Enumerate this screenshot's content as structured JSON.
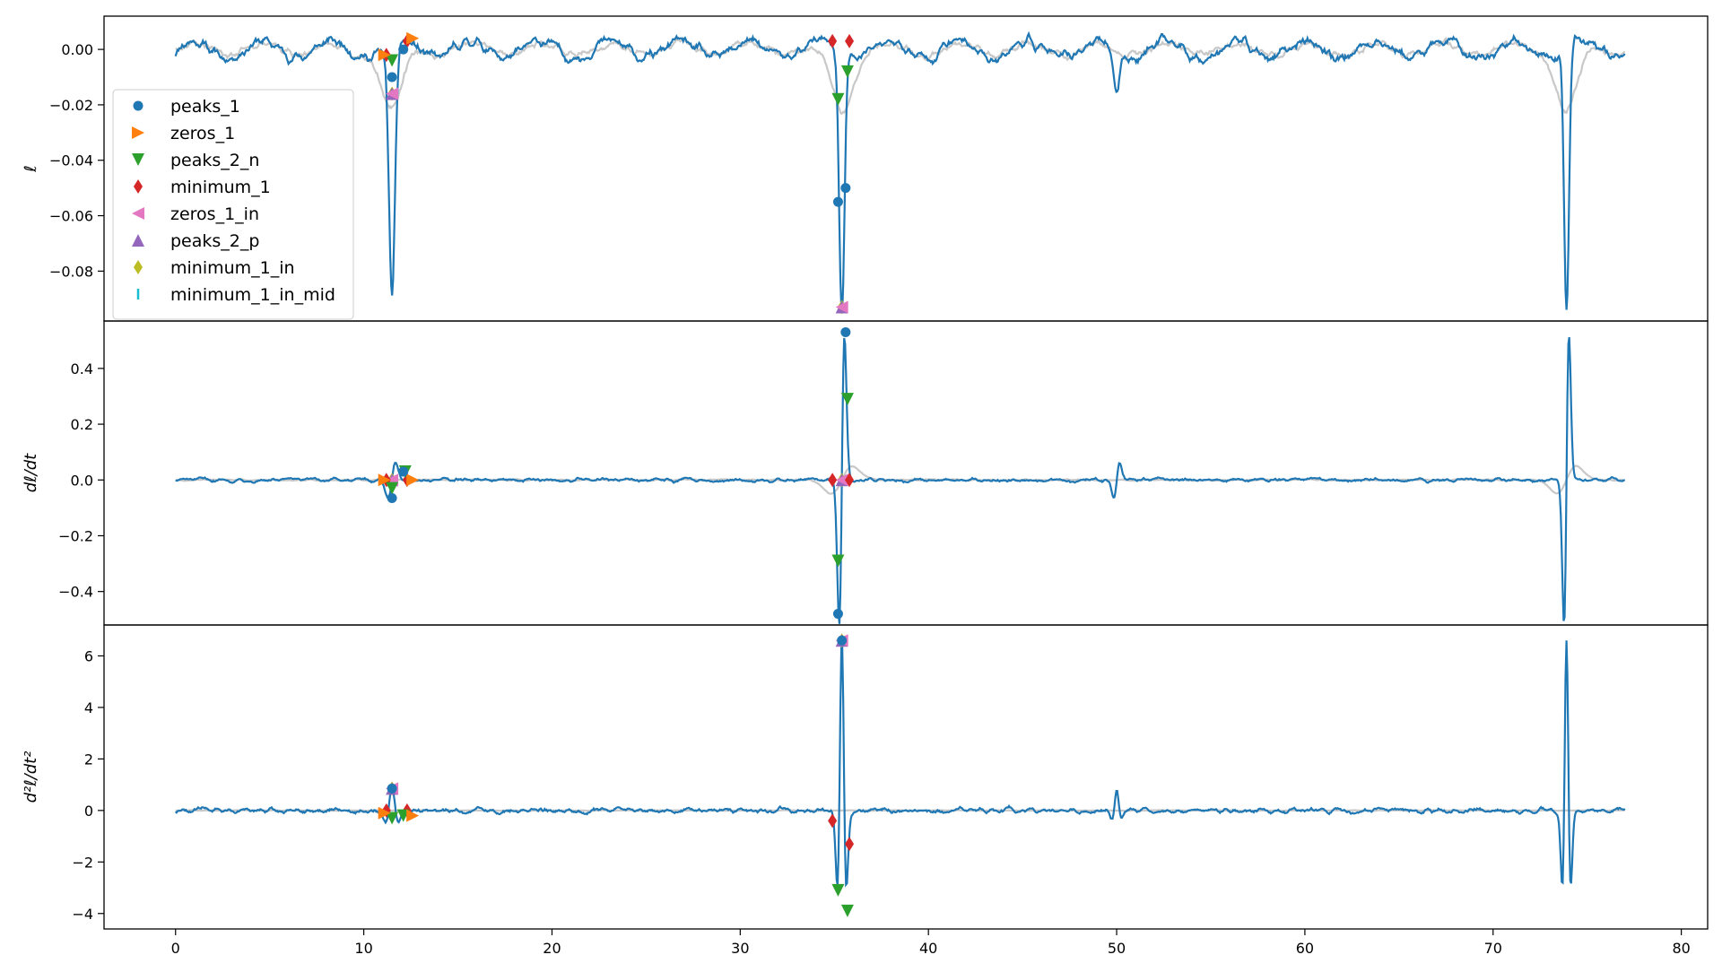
{
  "chart_data": [
    {
      "type": "line",
      "ylabel": "ℓ",
      "ylim": [
        -0.098,
        0.012
      ],
      "yticks": [
        0.0,
        -0.02,
        -0.04,
        -0.06,
        -0.08
      ],
      "ytick_labels": [
        "0.00",
        "−0.02",
        "−0.04",
        "−0.06",
        "−0.08"
      ],
      "events": [
        {
          "x": 11.5,
          "depth": -0.092,
          "width": 0.16
        },
        {
          "x": 35.4,
          "depth": -0.094,
          "width": 0.14
        },
        {
          "x": 73.9,
          "depth": -0.094,
          "width": 0.13
        },
        {
          "x": 50.0,
          "depth": -0.014,
          "width": 0.15
        }
      ],
      "markers": {
        "peaks_1": [
          [
            11.5,
            -0.01
          ],
          [
            12.1,
            0.0
          ],
          [
            35.2,
            -0.055
          ],
          [
            35.6,
            -0.05
          ]
        ],
        "zeros_1": [
          [
            11.1,
            -0.002
          ],
          [
            12.6,
            0.004
          ]
        ],
        "peaks_2_n": [
          [
            11.5,
            -0.004
          ],
          [
            35.2,
            -0.018
          ],
          [
            35.7,
            -0.008
          ]
        ],
        "minimum_1": [
          [
            11.2,
            -0.002
          ],
          [
            12.3,
            0.003
          ],
          [
            34.9,
            0.003
          ],
          [
            35.8,
            0.003
          ]
        ],
        "zeros_1_in": [
          [
            11.5,
            -0.016
          ],
          [
            35.4,
            -0.093
          ]
        ],
        "peaks_2_p": [
          [
            11.5,
            -0.016
          ],
          [
            35.4,
            -0.093
          ]
        ],
        "minimum_1_in": [
          [
            11.5,
            -0.016
          ],
          [
            35.4,
            -0.093
          ]
        ],
        "minimum_1_in_mid": [
          [
            11.5,
            -0.016
          ],
          [
            35.4,
            -0.093
          ]
        ]
      }
    },
    {
      "type": "line",
      "ylabel": "dℓ/dt",
      "ylim": [
        -0.52,
        0.57
      ],
      "yticks": [
        0.4,
        0.2,
        0.0,
        -0.2,
        -0.4
      ],
      "ytick_labels": [
        "0.4",
        "0.2",
        "0.0",
        "−0.2",
        "−0.4"
      ],
      "events": [
        {
          "x": 11.5,
          "amp": 0.06,
          "width": 0.2
        },
        {
          "x": 35.4,
          "amp": 0.52,
          "width": 0.14
        },
        {
          "x": 73.9,
          "amp": 0.52,
          "width": 0.13
        },
        {
          "x": 50.0,
          "amp": 0.06,
          "width": 0.15
        }
      ],
      "markers": {
        "peaks_1": [
          [
            11.5,
            -0.065
          ],
          [
            12.1,
            0.03
          ],
          [
            35.2,
            -0.48
          ],
          [
            35.6,
            0.53
          ]
        ],
        "zeros_1": [
          [
            11.1,
            0.0
          ],
          [
            12.6,
            0.0
          ]
        ],
        "peaks_2_n": [
          [
            11.5,
            -0.03
          ],
          [
            12.2,
            0.03
          ],
          [
            35.2,
            -0.29
          ],
          [
            35.7,
            0.29
          ]
        ],
        "minimum_1": [
          [
            11.2,
            0.0
          ],
          [
            12.3,
            0.0
          ],
          [
            34.9,
            0.0
          ],
          [
            35.8,
            0.0
          ]
        ],
        "zeros_1_in": [
          [
            11.5,
            0.0
          ],
          [
            35.4,
            0.0
          ]
        ],
        "peaks_2_p": [
          [
            11.5,
            0.0
          ],
          [
            35.4,
            0.0
          ]
        ],
        "minimum_1_in": [
          [
            11.5,
            0.0
          ],
          [
            35.4,
            0.0
          ]
        ],
        "minimum_1_in_mid": [
          [
            11.5,
            0.0
          ],
          [
            35.4,
            0.0
          ]
        ]
      }
    },
    {
      "type": "line",
      "ylabel": "d²ℓ/dt²",
      "xlabel": "",
      "xlim": [
        -3.8,
        81.4
      ],
      "ylim": [
        -4.6,
        7.2
      ],
      "xticks": [
        0,
        10,
        20,
        30,
        40,
        50,
        60,
        70,
        80
      ],
      "xtick_labels": [
        "0",
        "10",
        "20",
        "30",
        "40",
        "50",
        "60",
        "70",
        "80"
      ],
      "yticks": [
        6,
        4,
        2,
        0,
        -2,
        -4
      ],
      "ytick_labels": [
        "6",
        "4",
        "2",
        "0",
        "−2",
        "−4"
      ],
      "events": [
        {
          "x": 11.5,
          "amp": 0.9,
          "width": 0.2
        },
        {
          "x": 35.4,
          "amp": 6.6,
          "width": 0.14
        },
        {
          "x": 73.9,
          "amp": 6.6,
          "width": 0.13
        },
        {
          "x": 50.0,
          "amp": 0.8,
          "width": 0.15
        }
      ],
      "markers": {
        "peaks_1": [
          [
            11.5,
            0.85
          ],
          [
            35.4,
            6.6
          ]
        ],
        "zeros_1": [
          [
            11.1,
            -0.1
          ],
          [
            12.6,
            -0.2
          ]
        ],
        "peaks_2_n": [
          [
            11.5,
            -0.3
          ],
          [
            12.1,
            -0.2
          ],
          [
            35.2,
            -3.1
          ],
          [
            35.7,
            -3.9
          ]
        ],
        "minimum_1": [
          [
            11.2,
            0.0
          ],
          [
            12.3,
            0.0
          ],
          [
            34.9,
            -0.4
          ],
          [
            35.8,
            -1.3
          ]
        ],
        "zeros_1_in": [
          [
            11.5,
            0.85
          ],
          [
            35.4,
            6.6
          ]
        ],
        "peaks_2_p": [
          [
            11.5,
            0.85
          ],
          [
            35.4,
            6.6
          ]
        ],
        "minimum_1_in": [
          [
            11.5,
            0.85
          ],
          [
            35.4,
            6.6
          ]
        ],
        "minimum_1_in_mid": [
          [
            11.5,
            0.85
          ],
          [
            35.4,
            6.6
          ]
        ]
      }
    }
  ],
  "shared_x": {
    "start": 0,
    "end": 77.0
  },
  "legend": {
    "placement": "upper-left of top panel",
    "entries": [
      {
        "key": "peaks_1",
        "label": "peaks_1",
        "color": "#1f77b4",
        "marker": "circle"
      },
      {
        "key": "zeros_1",
        "label": "zeros_1",
        "color": "#ff7f0e",
        "marker": "triangle-right"
      },
      {
        "key": "peaks_2_n",
        "label": "peaks_2_n",
        "color": "#2ca02c",
        "marker": "triangle-down"
      },
      {
        "key": "minimum_1",
        "label": "minimum_1",
        "color": "#d62728",
        "marker": "thin-diamond"
      },
      {
        "key": "zeros_1_in",
        "label": "zeros_1_in",
        "color": "#e377c2",
        "marker": "triangle-left"
      },
      {
        "key": "peaks_2_p",
        "label": "peaks_2_p",
        "color": "#9467bd",
        "marker": "triangle-up"
      },
      {
        "key": "minimum_1_in",
        "label": "minimum_1_in",
        "color": "#bcbd22",
        "marker": "thin-diamond"
      },
      {
        "key": "minimum_1_in_mid",
        "label": "minimum_1_in_mid",
        "color": "#17becf",
        "marker": "vline"
      }
    ]
  },
  "colors": {
    "main_line": "#1f77b4",
    "smooth_line": "#c8c8c8"
  }
}
